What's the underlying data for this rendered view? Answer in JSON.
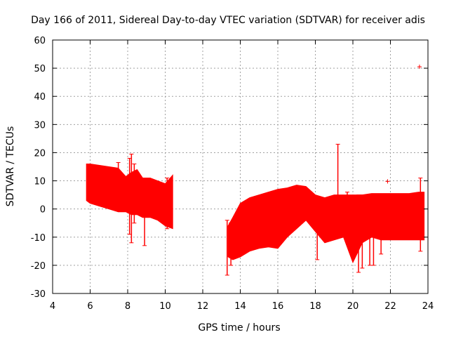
{
  "chart_data": {
    "type": "scatter",
    "title": "Day 166 of 2011, Sidereal Day-to-day VTEC variation (SDTVAR) for receiver adis",
    "xlabel": "GPS time / hours",
    "ylabel": "SDTVAR / TECUs",
    "xlim": [
      4,
      24
    ],
    "ylim": [
      -30,
      60
    ],
    "xticks": [
      4,
      6,
      8,
      10,
      12,
      14,
      16,
      18,
      20,
      22,
      24
    ],
    "yticks": [
      -30,
      -20,
      -10,
      0,
      10,
      20,
      30,
      40,
      50,
      60
    ],
    "grid": true,
    "series": [
      {
        "name": "SDTVAR",
        "color": "#ff0000",
        "marker": "+",
        "envelope_x": [
          5.8,
          6.0,
          6.5,
          7.0,
          7.5,
          7.9,
          8.2,
          8.5,
          8.8,
          9.2,
          9.6,
          10.0,
          10.4
        ],
        "envelope_upper": [
          16,
          16,
          15.5,
          15,
          14.5,
          11.5,
          13,
          14,
          11,
          11,
          10,
          9,
          12
        ],
        "envelope_lower": [
          3,
          2,
          1,
          0,
          -1,
          -1,
          -2,
          -2,
          -3,
          -3,
          -4,
          -6,
          -7
        ],
        "envelope2_x": [
          13.35,
          13.6,
          14.0,
          14.5,
          15.0,
          15.5,
          16.0,
          16.5,
          17.0,
          17.5,
          18.0,
          18.5,
          19.0,
          19.5,
          20.0,
          20.5,
          21.0,
          21.5,
          22.0,
          22.5,
          23.0,
          23.5,
          23.8
        ],
        "envelope2_upper": [
          -6,
          -3,
          2,
          4,
          5,
          6,
          7,
          7.5,
          8.5,
          8,
          5,
          4,
          5,
          5,
          5,
          5,
          5.5,
          5.5,
          5.5,
          5.5,
          5.5,
          6,
          6
        ],
        "envelope2_lower": [
          -17,
          -18,
          -17,
          -15,
          -14,
          -13.5,
          -14,
          -10,
          -7,
          -4,
          -8,
          -12,
          -11,
          -10,
          -19,
          -12,
          -10,
          -11,
          -11,
          -11,
          -11,
          -11,
          -11
        ],
        "spikes": [
          {
            "x": 7.5,
            "low": 4,
            "high": 16.5
          },
          {
            "x": 8.1,
            "low": -9,
            "high": 18
          },
          {
            "x": 8.2,
            "low": -12,
            "high": 19.5
          },
          {
            "x": 8.35,
            "low": -5,
            "high": 16
          },
          {
            "x": 8.9,
            "low": -13,
            "high": 10
          },
          {
            "x": 10.1,
            "low": -7,
            "high": 11
          },
          {
            "x": 13.3,
            "low": -23.5,
            "high": -4
          },
          {
            "x": 13.5,
            "low": -20,
            "high": -5
          },
          {
            "x": 18.1,
            "low": -18,
            "high": 4
          },
          {
            "x": 19.2,
            "low": 4,
            "high": 23
          },
          {
            "x": 19.7,
            "low": -10,
            "high": 6
          },
          {
            "x": 20.3,
            "low": -22.5,
            "high": 5
          },
          {
            "x": 20.5,
            "low": -21,
            "high": 5
          },
          {
            "x": 20.9,
            "low": -20,
            "high": 5
          },
          {
            "x": 21.1,
            "low": -20,
            "high": 5
          },
          {
            "x": 21.5,
            "low": -16,
            "high": 5
          },
          {
            "x": 23.6,
            "low": -15,
            "high": 11
          }
        ],
        "outliers": [
          {
            "x": 21.85,
            "y": 9.8
          },
          {
            "x": 23.55,
            "y": 50.5
          }
        ]
      }
    ]
  }
}
